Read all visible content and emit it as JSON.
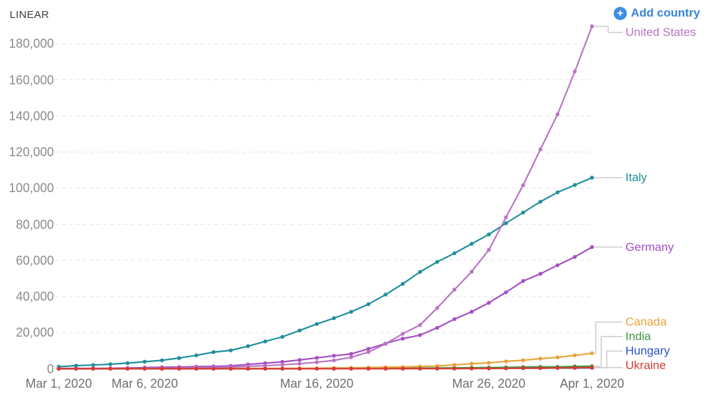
{
  "header": {
    "scale_label": "LINEAR",
    "add_country_label": "Add country"
  },
  "theme": {
    "add_button_text_color": "#3586D7",
    "add_button_icon_color": "#3B8EE3",
    "grid_color": "#E2E2E2",
    "baseline_color": "#CCCCCC",
    "connector_color": "#CCCCCC",
    "y_tick_color": "#8B8B8B",
    "x_tick_color": "#6F6F6F"
  },
  "chart_data": {
    "type": "line",
    "grid": "dashed-horizontal",
    "legend_position": "right",
    "x_axis": {
      "dates": [
        "Mar 1, 2020",
        "Mar 2, 2020",
        "Mar 3, 2020",
        "Mar 4, 2020",
        "Mar 5, 2020",
        "Mar 6, 2020",
        "Mar 7, 2020",
        "Mar 8, 2020",
        "Mar 9, 2020",
        "Mar 10, 2020",
        "Mar 11, 2020",
        "Mar 12, 2020",
        "Mar 13, 2020",
        "Mar 14, 2020",
        "Mar 15, 2020",
        "Mar 16, 2020",
        "Mar 17, 2020",
        "Mar 18, 2020",
        "Mar 19, 2020",
        "Mar 20, 2020",
        "Mar 21, 2020",
        "Mar 22, 2020",
        "Mar 23, 2020",
        "Mar 24, 2020",
        "Mar 25, 2020",
        "Mar 26, 2020",
        "Mar 27, 2020",
        "Mar 28, 2020",
        "Mar 29, 2020",
        "Mar 30, 2020",
        "Mar 31, 2020",
        "Apr 1, 2020"
      ],
      "ticks": [
        {
          "index": 0,
          "label": "Mar 1, 2020"
        },
        {
          "index": 5,
          "label": "Mar 6, 2020"
        },
        {
          "index": 15,
          "label": "Mar 16, 2020"
        },
        {
          "index": 25,
          "label": "Mar 26, 2020"
        },
        {
          "index": 31,
          "label": "Apr 1, 2020"
        }
      ]
    },
    "y_axis": {
      "min": 0,
      "max": 190000,
      "tick_interval": 20000,
      "ticks": [
        {
          "value": 0,
          "label": "0"
        },
        {
          "value": 20000,
          "label": "20,000"
        },
        {
          "value": 40000,
          "label": "40,000"
        },
        {
          "value": 60000,
          "label": "60,000"
        },
        {
          "value": 80000,
          "label": "80,000"
        },
        {
          "value": 100000,
          "label": "100,000"
        },
        {
          "value": 120000,
          "label": "120,000"
        },
        {
          "value": 140000,
          "label": "140,000"
        },
        {
          "value": 160000,
          "label": "160,000"
        },
        {
          "value": 180000,
          "label": "180,000"
        }
      ]
    },
    "series": [
      {
        "id": "united-states",
        "label": "United States",
        "color": "#BA74C4",
        "values": [
          68,
          75,
          100,
          124,
          158,
          221,
          319,
          435,
          541,
          704,
          994,
          1301,
          1630,
          2183,
          2770,
          3613,
          4596,
          6344,
          9197,
          13779,
          19367,
          24192,
          33592,
          43781,
          53740,
          65778,
          83836,
          101657,
          121465,
          140909,
          164610,
          189618
        ]
      },
      {
        "id": "italy",
        "label": "Italy",
        "color": "#1F8F9B",
        "values": [
          1128,
          1694,
          2036,
          2502,
          3089,
          3858,
          4636,
          5883,
          7375,
          9172,
          10149,
          12462,
          15113,
          17660,
          21157,
          24747,
          27980,
          31506,
          35713,
          41035,
          47021,
          53578,
          59138,
          63927,
          69176,
          74386,
          80589,
          86498,
          92472,
          97689,
          101739,
          105792
        ]
      },
      {
        "id": "germany",
        "label": "Germany",
        "color": "#A54FC4",
        "values": [
          117,
          150,
          188,
          240,
          400,
          639,
          795,
          902,
          1139,
          1296,
          1567,
          2369,
          3062,
          3795,
          4838,
          6012,
          7156,
          8198,
          10999,
          13957,
          16662,
          18610,
          22672,
          27436,
          31554,
          36508,
          42288,
          48582,
          52547,
          57298,
          61913,
          67366
        ]
      },
      {
        "id": "canada",
        "label": "Canada",
        "color": "#E8A33C",
        "values": [
          20,
          24,
          27,
          30,
          33,
          37,
          49,
          54,
          64,
          77,
          79,
          108,
          117,
          193,
          198,
          252,
          415,
          478,
          657,
          800,
          943,
          1277,
          1469,
          2088,
          2790,
          3251,
          4042,
          4682,
          5576,
          6280,
          7398,
          8527
        ]
      },
      {
        "id": "india",
        "label": "India",
        "color": "#3D9842",
        "values": [
          3,
          3,
          5,
          5,
          28,
          30,
          31,
          34,
          39,
          43,
          56,
          62,
          73,
          82,
          102,
          113,
          119,
          142,
          156,
          194,
          244,
          330,
          396,
          499,
          536,
          657,
          727,
          887,
          987,
          1024,
          1251,
          1397
        ]
      },
      {
        "id": "hungary",
        "label": "Hungary",
        "color": "#2D53C8",
        "values": [
          0,
          0,
          0,
          0,
          2,
          2,
          4,
          5,
          7,
          9,
          9,
          13,
          13,
          19,
          30,
          32,
          39,
          50,
          58,
          73,
          85,
          103,
          131,
          167,
          187,
          226,
          261,
          300,
          343,
          408,
          447,
          492
        ]
      },
      {
        "id": "ukraine",
        "label": "Ukraine",
        "color": "#D63B32",
        "values": [
          0,
          0,
          1,
          1,
          1,
          1,
          1,
          1,
          1,
          1,
          1,
          1,
          3,
          3,
          3,
          3,
          7,
          14,
          14,
          16,
          29,
          47,
          73,
          73,
          97,
          145,
          196,
          310,
          356,
          475,
          548,
          645
        ]
      }
    ]
  }
}
